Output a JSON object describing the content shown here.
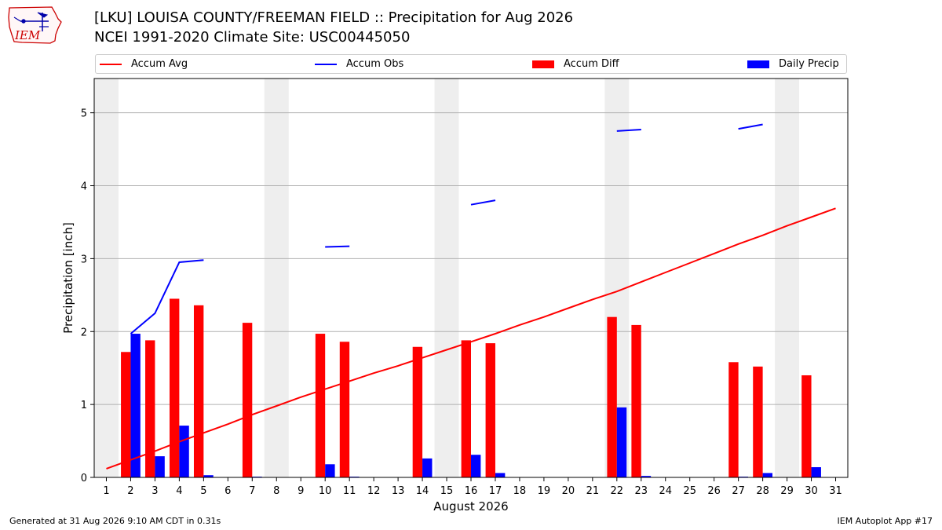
{
  "header": {
    "title_line1": "[LKU] LOUISA COUNTY/FREEMAN FIELD :: Precipitation for Aug 2026",
    "title_line2": "NCEI 1991-2020 Climate Site: USC00445050"
  },
  "logo": {
    "text": "IEM",
    "icon": "iowa-state-outline-icon",
    "color": "#cc0000"
  },
  "legend": {
    "placement": "top",
    "items": [
      {
        "label": "Accum Avg",
        "kind": "line",
        "color": "#ff0000"
      },
      {
        "label": "Accum Obs",
        "kind": "line",
        "color": "#0000ff"
      },
      {
        "label": "Accum Diff",
        "kind": "bar",
        "color": "#ff0000"
      },
      {
        "label": "Daily Precip",
        "kind": "bar",
        "color": "#0000ff"
      }
    ]
  },
  "footer": {
    "left": "Generated at 31 Aug 2026 9:10 AM CDT in 0.31s",
    "right": "IEM Autoplot App #17"
  },
  "chart_data": {
    "type": "bar",
    "title": "[LKU] LOUISA COUNTY/FREEMAN FIELD :: Precipitation for Aug 2026",
    "subtitle": "NCEI 1991-2020 Climate Site: USC00445050",
    "xlabel": "August 2026",
    "ylabel": "Precipitation [inch]",
    "xlim": [
      0.5,
      31.5
    ],
    "ylim": [
      0,
      5.47
    ],
    "yticks": [
      0,
      1,
      2,
      3,
      4,
      5
    ],
    "grid": true,
    "weekend_shading_days": [
      1,
      8,
      15,
      22,
      29
    ],
    "shade_color": "#eeeeee",
    "categories": [
      1,
      2,
      3,
      4,
      5,
      6,
      7,
      8,
      9,
      10,
      11,
      12,
      13,
      14,
      15,
      16,
      17,
      18,
      19,
      20,
      21,
      22,
      23,
      24,
      25,
      26,
      27,
      28,
      29,
      30,
      31
    ],
    "series": [
      {
        "name": "Accum Diff",
        "kind": "bar",
        "color": "#ff0000",
        "values": [
          0,
          1.72,
          1.88,
          2.45,
          2.36,
          0,
          2.12,
          0,
          0,
          1.97,
          1.86,
          0,
          0,
          1.79,
          0,
          1.88,
          1.84,
          0,
          0,
          0,
          0,
          2.2,
          2.09,
          0,
          0,
          0,
          1.58,
          1.52,
          0,
          1.4,
          0
        ]
      },
      {
        "name": "Daily Precip",
        "kind": "bar",
        "color": "#0000ff",
        "values": [
          0,
          1.97,
          0.29,
          0.71,
          0.03,
          0,
          0.01,
          0,
          0,
          0.18,
          0.01,
          0,
          0,
          0.26,
          0,
          0.31,
          0.06,
          0,
          0,
          0,
          0,
          0.96,
          0.02,
          0,
          0,
          0,
          0.01,
          0.06,
          0,
          0.14,
          0
        ]
      },
      {
        "name": "Accum Avg",
        "kind": "line",
        "color": "#ff0000",
        "values": [
          0.12,
          0.24,
          0.36,
          0.49,
          0.61,
          0.73,
          0.86,
          0.98,
          1.1,
          1.21,
          1.32,
          1.43,
          1.53,
          1.64,
          1.75,
          1.86,
          1.97,
          2.09,
          2.2,
          2.32,
          2.44,
          2.55,
          2.68,
          2.81,
          2.94,
          3.07,
          3.2,
          3.32,
          3.45,
          3.57,
          3.69
        ]
      },
      {
        "name": "Accum Obs",
        "kind": "line",
        "color": "#0000ff",
        "values": [
          null,
          1.97,
          2.25,
          2.95,
          2.98,
          null,
          null,
          null,
          null,
          3.16,
          3.17,
          null,
          null,
          null,
          null,
          3.74,
          3.8,
          null,
          null,
          null,
          null,
          4.75,
          4.77,
          null,
          null,
          null,
          4.78,
          4.84,
          null,
          null,
          null
        ]
      }
    ]
  }
}
